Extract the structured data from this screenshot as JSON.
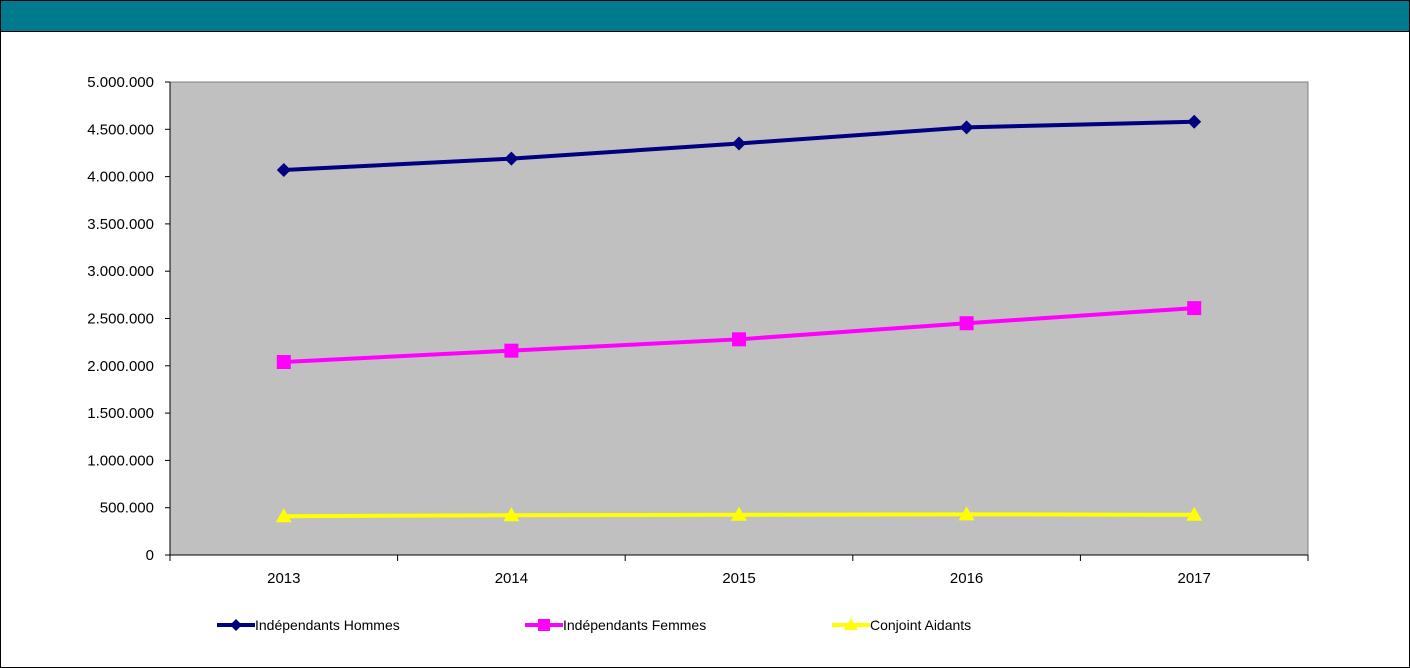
{
  "header": {
    "title": "",
    "color": "#007a8f"
  },
  "chart_data": {
    "type": "line",
    "title": "",
    "xlabel": "",
    "ylabel": "",
    "categories": [
      "2013",
      "2014",
      "2015",
      "2016",
      "2017"
    ],
    "ylim": [
      0,
      5000000
    ],
    "y_ticks": [
      "0",
      "500.000",
      "1.000.000",
      "1.500.000",
      "2.000.000",
      "2.500.000",
      "3.000.000",
      "3.500.000",
      "4.000.000",
      "4.500.000",
      "5.000.000"
    ],
    "grid": false,
    "plot_background": "#c0c0c0",
    "legend_position": "bottom",
    "series": [
      {
        "name": "Indépendants Hommes",
        "color": "#000080",
        "marker": "diamond",
        "values": [
          4070000,
          4190000,
          4350000,
          4520000,
          4580000
        ]
      },
      {
        "name": "Indépendants Femmes",
        "color": "#ff00ff",
        "marker": "square",
        "values": [
          2040000,
          2160000,
          2280000,
          2450000,
          2610000
        ]
      },
      {
        "name": "Conjoint Aidants",
        "color": "#ffff00",
        "marker": "triangle",
        "values": [
          410000,
          420000,
          425000,
          430000,
          425000
        ]
      }
    ]
  }
}
